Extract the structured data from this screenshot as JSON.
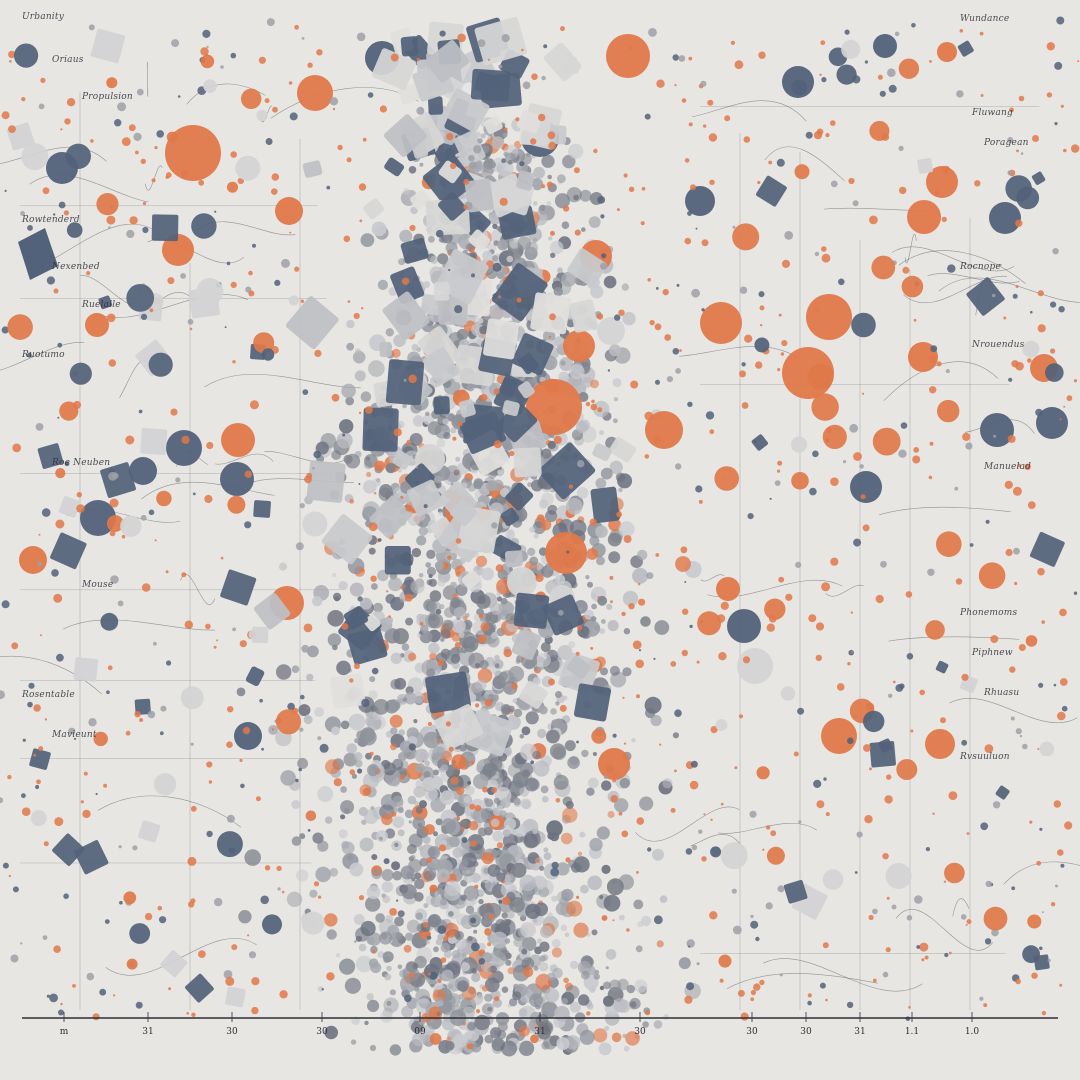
{
  "artwork": {
    "palette": {
      "background": "#e7e6e2",
      "orange": "#e0784a",
      "slate": "#52627a",
      "light_gray": "#d4d4d4",
      "mid_gray": "#8a8d94",
      "ink": "#2d2f38"
    },
    "left_scribbles": [
      "Urbanity",
      "Oriaus",
      "Propulsion",
      "Rowtenderd",
      "Nexenbed",
      "Ruelalle",
      "Ruotumo",
      "Roe Neuben",
      "Mouse",
      "Rosentable",
      "Mavieunt"
    ],
    "right_scribbles": [
      "Wundance",
      "Fluwang",
      "Poragean",
      "Rocnope",
      "Nrouendus",
      "Manuelad",
      "Phonemoms",
      "Piphnew",
      "Rhuasu",
      "Rvsuuluon"
    ],
    "axis_ticks": [
      "m",
      "31",
      "30",
      "30",
      "09",
      "31",
      "30",
      "30",
      "30",
      "31",
      "1.1",
      "1.0"
    ]
  }
}
